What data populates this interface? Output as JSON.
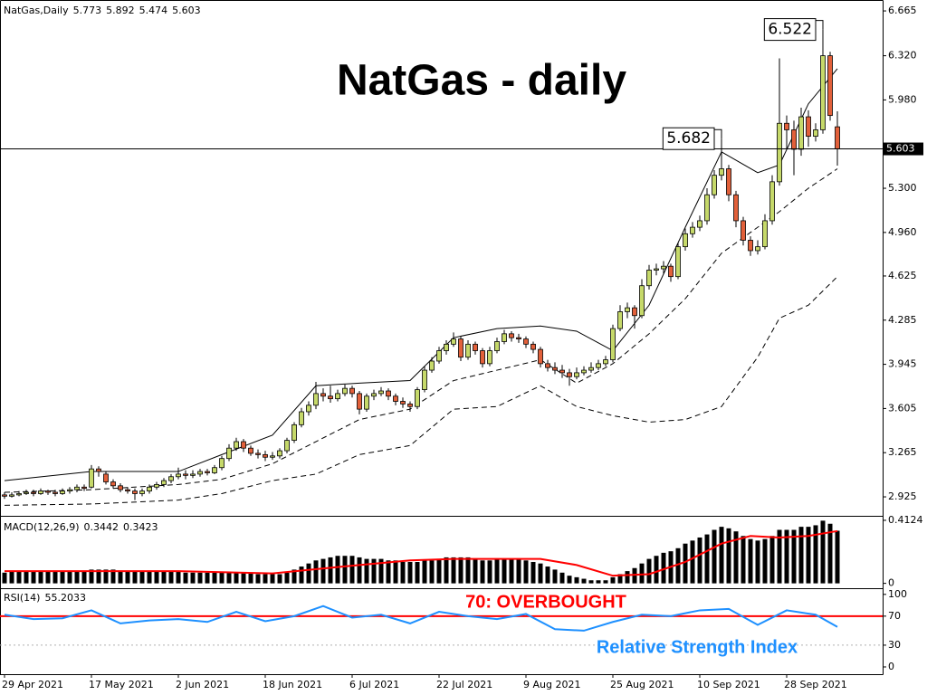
{
  "chart_data": [
    {
      "type": "candlestick",
      "title": "NatGas - daily",
      "label": "NatGas,Daily",
      "up_color": "#c6d96a",
      "down_color": "#e2603a",
      "categories": [
        "29 Apr 2021",
        null,
        null,
        null,
        null,
        null,
        null,
        null,
        null,
        null,
        null,
        null,
        "17 May 2021",
        null,
        null,
        null,
        null,
        null,
        null,
        null,
        null,
        null,
        null,
        null,
        "2 Jun 2021",
        null,
        null,
        null,
        null,
        null,
        null,
        null,
        null,
        null,
        null,
        null,
        "18 Jun 2021",
        null,
        null,
        null,
        null,
        null,
        null,
        null,
        null,
        null,
        null,
        null,
        "6 Jul 2021",
        null,
        null,
        null,
        null,
        null,
        null,
        null,
        null,
        null,
        null,
        null,
        "22 Jul 2021",
        null,
        null,
        null,
        null,
        null,
        null,
        null,
        null,
        null,
        null,
        null,
        "9 Aug 2021",
        null,
        null,
        null,
        null,
        null,
        null,
        null,
        null,
        null,
        null,
        null,
        "25 Aug 2021",
        null,
        null,
        null,
        null,
        null,
        null,
        null,
        null,
        null,
        null,
        null,
        "10 Sep 2021",
        null,
        null,
        null,
        null,
        null,
        null,
        null,
        null,
        null,
        null,
        null,
        "28 Sep 2021",
        null,
        null,
        null,
        null,
        null,
        null,
        null
      ],
      "ohlc": [
        [
          2.94,
          2.96,
          2.91,
          2.93
        ],
        [
          2.93,
          2.96,
          2.92,
          2.94
        ],
        [
          2.94,
          2.97,
          2.93,
          2.95
        ],
        [
          2.95,
          2.98,
          2.94,
          2.96
        ],
        [
          2.96,
          2.98,
          2.93,
          2.95
        ],
        [
          2.95,
          2.99,
          2.94,
          2.97
        ],
        [
          2.97,
          2.98,
          2.94,
          2.96
        ],
        [
          2.96,
          2.98,
          2.93,
          2.95
        ],
        [
          2.95,
          2.99,
          2.94,
          2.97
        ],
        [
          2.97,
          3.0,
          2.95,
          2.98
        ],
        [
          2.98,
          3.02,
          2.96,
          3.0
        ],
        [
          3.0,
          3.02,
          2.97,
          2.99
        ],
        [
          3.0,
          3.17,
          2.99,
          3.14
        ],
        [
          3.14,
          3.16,
          3.08,
          3.12
        ],
        [
          3.1,
          3.12,
          3.02,
          3.04
        ],
        [
          3.04,
          3.06,
          2.99,
          3.01
        ],
        [
          3.01,
          3.03,
          2.96,
          2.98
        ],
        [
          2.98,
          3.0,
          2.95,
          2.97
        ],
        [
          2.97,
          2.99,
          2.9,
          2.95
        ],
        [
          2.95,
          2.99,
          2.93,
          2.97
        ],
        [
          2.97,
          3.02,
          2.95,
          3.0
        ],
        [
          3.0,
          3.04,
          2.98,
          3.02
        ],
        [
          3.02,
          3.07,
          3.0,
          3.05
        ],
        [
          3.05,
          3.1,
          3.03,
          3.08
        ],
        [
          3.08,
          3.15,
          3.06,
          3.1
        ],
        [
          3.1,
          3.13,
          3.06,
          3.09
        ],
        [
          3.09,
          3.13,
          3.07,
          3.1
        ],
        [
          3.1,
          3.14,
          3.08,
          3.12
        ],
        [
          3.12,
          3.14,
          3.09,
          3.11
        ],
        [
          3.11,
          3.17,
          3.1,
          3.15
        ],
        [
          3.15,
          3.24,
          3.13,
          3.22
        ],
        [
          3.22,
          3.33,
          3.2,
          3.3
        ],
        [
          3.3,
          3.38,
          3.28,
          3.35
        ],
        [
          3.35,
          3.37,
          3.27,
          3.3
        ],
        [
          3.3,
          3.32,
          3.24,
          3.26
        ],
        [
          3.26,
          3.29,
          3.22,
          3.25
        ],
        [
          3.25,
          3.28,
          3.2,
          3.23
        ],
        [
          3.23,
          3.27,
          3.21,
          3.24
        ],
        [
          3.24,
          3.3,
          3.22,
          3.28
        ],
        [
          3.28,
          3.38,
          3.26,
          3.36
        ],
        [
          3.36,
          3.5,
          3.34,
          3.48
        ],
        [
          3.48,
          3.61,
          3.46,
          3.58
        ],
        [
          3.58,
          3.66,
          3.55,
          3.63
        ],
        [
          3.63,
          3.81,
          3.6,
          3.72
        ],
        [
          3.72,
          3.76,
          3.66,
          3.7
        ],
        [
          3.7,
          3.78,
          3.65,
          3.68
        ],
        [
          3.68,
          3.75,
          3.66,
          3.72
        ],
        [
          3.72,
          3.79,
          3.7,
          3.76
        ],
        [
          3.76,
          3.78,
          3.69,
          3.72
        ],
        [
          3.72,
          3.74,
          3.56,
          3.6
        ],
        [
          3.6,
          3.72,
          3.58,
          3.7
        ],
        [
          3.7,
          3.75,
          3.67,
          3.72
        ],
        [
          3.72,
          3.77,
          3.7,
          3.74
        ],
        [
          3.74,
          3.76,
          3.67,
          3.7
        ],
        [
          3.7,
          3.72,
          3.63,
          3.66
        ],
        [
          3.66,
          3.69,
          3.61,
          3.64
        ],
        [
          3.64,
          3.66,
          3.58,
          3.62
        ],
        [
          3.62,
          3.77,
          3.6,
          3.75
        ],
        [
          3.75,
          3.93,
          3.73,
          3.9
        ],
        [
          3.9,
          4.0,
          3.88,
          3.97
        ],
        [
          3.97,
          4.08,
          3.95,
          4.05
        ],
        [
          4.05,
          4.13,
          4.02,
          4.1
        ],
        [
          4.1,
          4.19,
          4.08,
          4.14
        ],
        [
          4.14,
          4.16,
          3.97,
          4.0
        ],
        [
          4.0,
          4.13,
          3.98,
          4.1
        ],
        [
          4.1,
          4.12,
          4.02,
          4.05
        ],
        [
          4.05,
          4.07,
          3.92,
          3.95
        ],
        [
          3.95,
          4.08,
          3.93,
          4.05
        ],
        [
          4.05,
          4.15,
          4.03,
          4.12
        ],
        [
          4.12,
          4.21,
          4.1,
          4.18
        ],
        [
          4.18,
          4.2,
          4.12,
          4.15
        ],
        [
          4.15,
          4.18,
          4.11,
          4.14
        ],
        [
          4.14,
          4.16,
          4.07,
          4.1
        ],
        [
          4.1,
          4.12,
          4.03,
          4.06
        ],
        [
          4.06,
          4.08,
          3.92,
          3.95
        ],
        [
          3.95,
          3.98,
          3.89,
          3.92
        ],
        [
          3.92,
          3.96,
          3.87,
          3.9
        ],
        [
          3.9,
          3.94,
          3.84,
          3.88
        ],
        [
          3.88,
          3.91,
          3.78,
          3.85
        ],
        [
          3.85,
          3.92,
          3.83,
          3.88
        ],
        [
          3.88,
          3.93,
          3.86,
          3.9
        ],
        [
          3.9,
          3.96,
          3.88,
          3.92
        ],
        [
          3.92,
          3.98,
          3.9,
          3.95
        ],
        [
          3.95,
          4.01,
          3.93,
          3.98
        ],
        [
          3.98,
          4.25,
          3.96,
          4.22
        ],
        [
          4.22,
          4.4,
          4.2,
          4.35
        ],
        [
          4.35,
          4.42,
          4.3,
          4.38
        ],
        [
          4.38,
          4.4,
          4.22,
          4.32
        ],
        [
          4.32,
          4.6,
          4.3,
          4.55
        ],
        [
          4.55,
          4.71,
          4.52,
          4.67
        ],
        [
          4.67,
          4.72,
          4.63,
          4.68
        ],
        [
          4.68,
          4.74,
          4.64,
          4.7
        ],
        [
          4.7,
          4.72,
          4.58,
          4.62
        ],
        [
          4.62,
          4.88,
          4.6,
          4.85
        ],
        [
          4.85,
          4.99,
          4.82,
          4.95
        ],
        [
          4.95,
          5.04,
          4.92,
          5.0
        ],
        [
          5.0,
          5.09,
          4.97,
          5.05
        ],
        [
          5.05,
          5.3,
          5.02,
          5.25
        ],
        [
          5.25,
          5.44,
          5.22,
          5.4
        ],
        [
          5.4,
          5.682,
          5.36,
          5.45
        ],
        [
          5.45,
          5.48,
          5.2,
          5.25
        ],
        [
          5.25,
          5.28,
          5.0,
          5.05
        ],
        [
          5.05,
          5.08,
          4.86,
          4.9
        ],
        [
          4.9,
          4.93,
          4.78,
          4.82
        ],
        [
          4.82,
          4.9,
          4.79,
          4.85
        ],
        [
          4.85,
          5.1,
          4.83,
          5.05
        ],
        [
          5.05,
          5.4,
          5.02,
          5.35
        ],
        [
          5.35,
          6.3,
          5.32,
          5.8
        ],
        [
          5.8,
          5.86,
          5.6,
          5.75
        ],
        [
          5.75,
          5.82,
          5.4,
          5.6
        ],
        [
          5.6,
          5.92,
          5.55,
          5.85
        ],
        [
          5.85,
          5.9,
          5.62,
          5.7
        ],
        [
          5.7,
          5.8,
          5.66,
          5.75
        ],
        [
          5.75,
          6.522,
          5.72,
          6.32
        ],
        [
          6.32,
          6.35,
          5.82,
          5.86
        ],
        [
          5.773,
          5.892,
          5.474,
          5.603
        ]
      ],
      "series": [
        {
          "x": [
            0,
            12,
            24,
            30,
            37,
            43,
            49,
            56,
            62,
            68,
            74,
            79,
            84,
            89,
            94,
            99,
            104,
            107,
            111,
            115
          ],
          "values": [
            3.05,
            3.12,
            3.12,
            3.25,
            3.4,
            3.78,
            3.8,
            3.82,
            4.15,
            4.22,
            4.24,
            4.2,
            4.05,
            4.4,
            5.0,
            5.58,
            5.42,
            5.48,
            5.95,
            6.22
          ],
          "color": "#000000",
          "dashed": false
        },
        {
          "x": [
            0,
            12,
            24,
            30,
            37,
            43,
            49,
            56,
            62,
            68,
            74,
            79,
            84,
            89,
            94,
            99,
            104,
            107,
            111,
            115
          ],
          "values": [
            2.96,
            2.98,
            3.02,
            3.06,
            3.18,
            3.35,
            3.52,
            3.6,
            3.82,
            3.9,
            3.98,
            3.8,
            3.95,
            4.18,
            4.45,
            4.8,
            5.0,
            5.12,
            5.3,
            5.45
          ],
          "color": "#000000",
          "dashed": true
        },
        {
          "x": [
            0,
            12,
            24,
            30,
            37,
            43,
            49,
            56,
            62,
            68,
            74,
            79,
            84,
            89,
            94,
            99,
            104,
            107,
            111,
            115
          ],
          "values": [
            2.86,
            2.87,
            2.9,
            2.95,
            3.05,
            3.1,
            3.25,
            3.32,
            3.6,
            3.62,
            3.78,
            3.62,
            3.55,
            3.5,
            3.52,
            3.62,
            4.0,
            4.3,
            4.4,
            4.62
          ],
          "color": "#000000",
          "dashed": true
        }
      ],
      "annotations": [
        {
          "x": 99,
          "y": 5.682
        },
        {
          "x": 113,
          "y": 6.522
        }
      ],
      "ylim": [
        2.779,
        6.749
      ],
      "yticks": [
        2.925,
        3.265,
        3.605,
        3.945,
        4.285,
        4.625,
        {
          "value": 4.96,
          "label": "4.960"
        },
        {
          "value": 5.3,
          "label": "5.300"
        },
        {
          "value": 5.98,
          "label": "5.980"
        },
        {
          "value": 6.32,
          "label": "6.320"
        },
        6.665
      ]
    },
    {
      "type": "macd",
      "label": "MACD(12,26,9)",
      "series": [
        {
          "color": "#000000",
          "values": [
            0.07,
            0.08,
            0.08,
            0.08,
            0.08,
            0.08,
            0.08,
            0.08,
            0.08,
            0.08,
            0.08,
            0.08,
            0.09,
            0.09,
            0.09,
            0.09,
            0.08,
            0.08,
            0.08,
            0.08,
            0.08,
            0.08,
            0.08,
            0.08,
            0.08,
            0.07,
            0.07,
            0.07,
            0.07,
            0.07,
            0.07,
            0.07,
            0.07,
            0.07,
            0.07,
            0.06,
            0.06,
            0.06,
            0.06,
            0.07,
            0.09,
            0.11,
            0.13,
            0.15,
            0.16,
            0.17,
            0.18,
            0.18,
            0.18,
            0.17,
            0.16,
            0.16,
            0.16,
            0.15,
            0.15,
            0.14,
            0.14,
            0.14,
            0.15,
            0.15,
            0.16,
            0.17,
            0.17,
            0.17,
            0.17,
            0.16,
            0.15,
            0.15,
            0.16,
            0.16,
            0.16,
            0.16,
            0.15,
            0.14,
            0.13,
            0.11,
            0.09,
            0.07,
            0.05,
            0.04,
            0.03,
            0.02,
            0.02,
            0.02,
            0.04,
            0.06,
            0.08,
            0.1,
            0.13,
            0.16,
            0.18,
            0.2,
            0.21,
            0.23,
            0.26,
            0.28,
            0.3,
            0.32,
            0.35,
            0.37,
            0.36,
            0.34,
            0.31,
            0.29,
            0.28,
            0.29,
            0.31,
            0.35,
            0.35,
            0.35,
            0.37,
            0.37,
            0.38,
            0.41,
            0.39,
            0.3442
          ]
        },
        {
          "color": "#ff0000",
          "x": [
            0,
            24,
            37,
            49,
            56,
            62,
            74,
            79,
            84,
            89,
            94,
            99,
            103,
            107,
            111,
            115
          ],
          "values": [
            0.08,
            0.08,
            0.065,
            0.12,
            0.15,
            0.16,
            0.16,
            0.12,
            0.05,
            0.06,
            0.14,
            0.26,
            0.31,
            0.3,
            0.31,
            0.3423
          ]
        }
      ],
      "ylim": [
        -0.02,
        0.43
      ],
      "yticks": [
        0,
        0.4124
      ]
    },
    {
      "type": "rsi",
      "label": "RSI(14)",
      "series": [
        {
          "color": "#1e90ff",
          "x": [
            0,
            4,
            8,
            12,
            16,
            20,
            24,
            28,
            32,
            36,
            40,
            44,
            48,
            52,
            56,
            60,
            64,
            68,
            72,
            76,
            80,
            84,
            88,
            92,
            96,
            100,
            104,
            108,
            112,
            115
          ],
          "values": [
            72,
            66,
            67,
            78,
            60,
            64,
            66,
            62,
            76,
            63,
            70,
            84,
            68,
            72,
            60,
            76,
            70,
            66,
            73,
            52,
            50,
            62,
            72,
            70,
            78,
            80,
            58,
            78,
            72,
            55.2033
          ]
        }
      ],
      "levels": [
        70,
        30
      ],
      "level_colors": [
        "#ff0000",
        "#b0b0b0"
      ],
      "annotations": [
        {
          "text": "70: OVERBOUGHT",
          "color": "#ff0000"
        },
        {
          "text": "Relative Strength Index",
          "color": "#1e90ff"
        }
      ],
      "ylim": [
        -10,
        106
      ],
      "yticks": [
        0,
        30,
        70,
        100
      ]
    }
  ]
}
